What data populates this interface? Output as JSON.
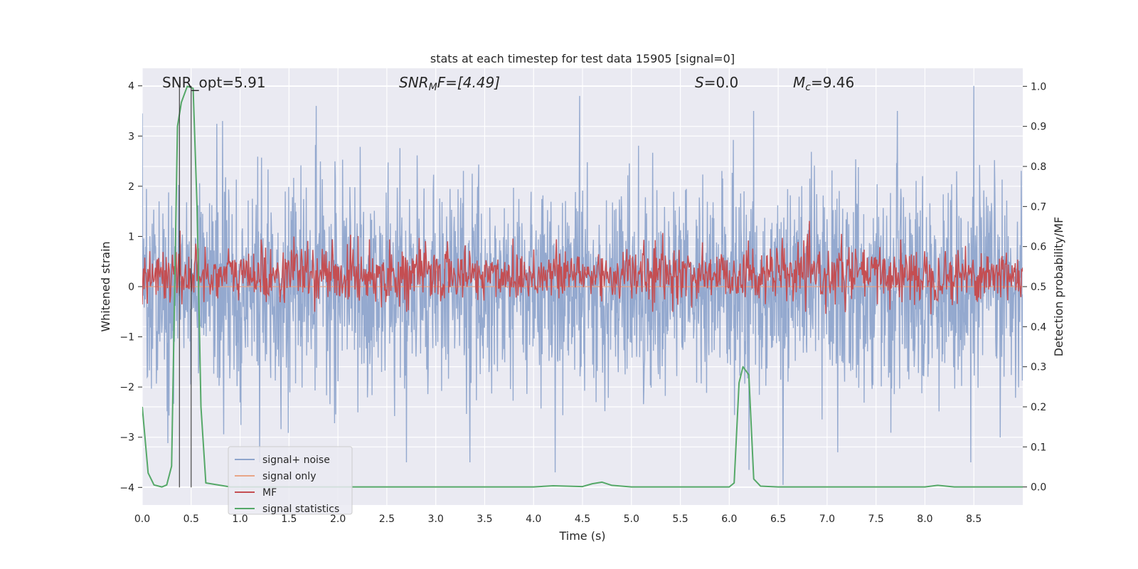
{
  "chart_data": {
    "type": "line",
    "title": "stats at each timestep for test data 15905 [signal=0]",
    "xlabel": "Time (s)",
    "ylabel": "Whitened strain",
    "ylabel_right": "Detection probability/MF",
    "xlim": [
      0.0,
      9.0
    ],
    "ylim": [
      -4.35,
      4.35
    ],
    "ylim_right": [
      -0.045,
      1.045
    ],
    "x_ticks": [
      0.0,
      0.5,
      1.0,
      1.5,
      2.0,
      2.5,
      3.0,
      3.5,
      4.0,
      4.5,
      5.0,
      5.5,
      6.0,
      6.5,
      7.0,
      7.5,
      8.0,
      8.5
    ],
    "x_tick_labels": [
      "0.0",
      "0.5",
      "1.0",
      "1.5",
      "2.0",
      "2.5",
      "3.0",
      "3.5",
      "4.0",
      "4.5",
      "5.0",
      "5.5",
      "6.0",
      "6.5",
      "7.0",
      "7.5",
      "8.0",
      "8.5"
    ],
    "y_ticks": [
      -4,
      -3,
      -2,
      -1,
      0,
      1,
      2,
      3,
      4
    ],
    "y_tick_labels": [
      "−4",
      "−3",
      "−2",
      "−1",
      "0",
      "1",
      "2",
      "3",
      "4"
    ],
    "y_ticks_right": [
      0.0,
      0.1,
      0.2,
      0.3,
      0.4,
      0.5,
      0.6,
      0.7,
      0.8,
      0.9,
      1.0
    ],
    "y_tick_labels_right": [
      "0.0",
      "0.1",
      "0.2",
      "0.3",
      "0.4",
      "0.5",
      "0.6",
      "0.7",
      "0.8",
      "0.9",
      "1.0"
    ],
    "grid": true,
    "annotations": {
      "snr_opt": "SNR_opt=5.91",
      "snr_mf_main": "SNR",
      "snr_mf_sub": "M",
      "snr_mf_rest": "F=[4.49]",
      "s_main": "S",
      "s_rest": "=0.0",
      "mc_main": "M",
      "mc_sub": "c",
      "mc_rest": "=9.46"
    },
    "vertical_lines_x": [
      0.38,
      0.5
    ],
    "legend": {
      "placement": "lower-left",
      "entries": [
        "signal+ noise",
        "signal only",
        "MF",
        "signal statistics"
      ]
    },
    "series": [
      {
        "name": "signal+ noise",
        "axis": "left",
        "color": "#8fa5cc",
        "kind": "noise",
        "sigma": 1.0,
        "n_points": 2304,
        "peaks": [
          [
            0.0,
            3.45
          ],
          [
            0.82,
            3.3
          ],
          [
            1.78,
            3.6
          ],
          [
            4.47,
            3.8
          ],
          [
            6.25,
            3.5
          ],
          [
            7.72,
            3.5
          ],
          [
            8.5,
            4.0
          ],
          [
            6.2,
            -3.65
          ],
          [
            6.55,
            -3.95
          ],
          [
            8.47,
            -3.5
          ],
          [
            2.7,
            -3.5
          ],
          [
            3.35,
            -3.5
          ],
          [
            4.22,
            -3.7
          ],
          [
            1.2,
            -3.5
          ]
        ]
      },
      {
        "name": "signal only",
        "axis": "left",
        "color": "#e8a587",
        "kind": "flat",
        "value": 0.0
      },
      {
        "name": "MF",
        "axis": "right",
        "color": "#c44e52",
        "kind": "mf",
        "base": 0.53,
        "amplitude": 0.035,
        "peaks": [
          [
            1.55,
            0.625
          ],
          [
            2.9,
            0.58
          ],
          [
            6.05,
            0.565
          ],
          [
            8.85,
            0.555
          ]
        ]
      },
      {
        "name": "signal statistics",
        "axis": "right",
        "color": "#55a868",
        "kind": "line",
        "x": [
          0.0,
          0.06,
          0.12,
          0.2,
          0.25,
          0.3,
          0.36,
          0.4,
          0.46,
          0.52,
          0.56,
          0.6,
          0.65,
          0.9,
          3.0,
          4.0,
          4.2,
          4.5,
          4.6,
          4.7,
          4.8,
          5.0,
          5.5,
          6.0,
          6.05,
          6.1,
          6.14,
          6.2,
          6.25,
          6.32,
          6.5,
          7.0,
          8.0,
          8.13,
          8.3,
          9.0
        ],
        "y": [
          0.2,
          0.035,
          0.005,
          0.0,
          0.005,
          0.052,
          0.9,
          0.96,
          1.0,
          0.995,
          0.7,
          0.2,
          0.01,
          0.0,
          0.0,
          0.0,
          0.003,
          0.001,
          0.008,
          0.012,
          0.004,
          0.0,
          0.0,
          0.0,
          0.01,
          0.26,
          0.3,
          0.28,
          0.02,
          0.002,
          0.0,
          0.0,
          0.0,
          0.004,
          0.0,
          0.0
        ]
      }
    ]
  }
}
